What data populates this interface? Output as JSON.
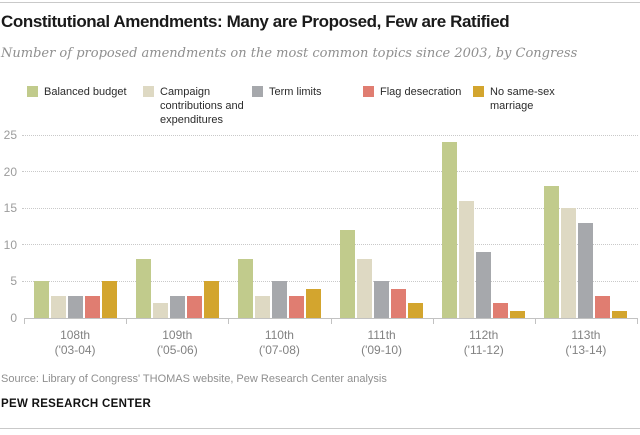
{
  "header": {
    "title": "Constitutional Amendments: Many are Proposed, Few are Ratified",
    "subtitle": "Number of proposed amendments on the most common topics since 2003, by Congress"
  },
  "chart_data": {
    "type": "bar",
    "title": "Constitutional Amendments: Many are Proposed, Few are Ratified",
    "subtitle": "Number of proposed amendments on the most common topics since 2003, by Congress",
    "categories": [
      {
        "label": "108th",
        "years": "('03-04)"
      },
      {
        "label": "109th",
        "years": "('05-06)"
      },
      {
        "label": "110th",
        "years": "('07-08)"
      },
      {
        "label": "111th",
        "years": "('09-10)"
      },
      {
        "label": "112th",
        "years": "('11-12)"
      },
      {
        "label": "113th",
        "years": "('13-14)"
      }
    ],
    "series": [
      {
        "name": "Balanced budget",
        "color": "#c1cb8c",
        "values": [
          5,
          8,
          8,
          12,
          24,
          18
        ]
      },
      {
        "name": "Campaign contributions and expenditures",
        "color": "#ded9c3",
        "values": [
          3,
          2,
          3,
          8,
          16,
          15
        ]
      },
      {
        "name": "Term limits",
        "color": "#a6a8ac",
        "values": [
          3,
          3,
          5,
          5,
          9,
          13
        ]
      },
      {
        "name": "Flag desecration",
        "color": "#e07d71",
        "values": [
          3,
          3,
          3,
          4,
          2,
          3
        ]
      },
      {
        "name": "No same-sex marriage",
        "color": "#d3a52e",
        "values": [
          5,
          5,
          4,
          2,
          1,
          1
        ]
      }
    ],
    "yticks": [
      0,
      5,
      10,
      15,
      20,
      25
    ],
    "ylim": [
      0,
      25
    ],
    "xlabel": "",
    "ylabel": "",
    "grid": "horizontal-dotted",
    "legend_position": "top"
  },
  "footer": {
    "source": "Source: Library of Congress' THOMAS website, Pew Research Center analysis",
    "brand": "PEW RESEARCH CENTER"
  }
}
